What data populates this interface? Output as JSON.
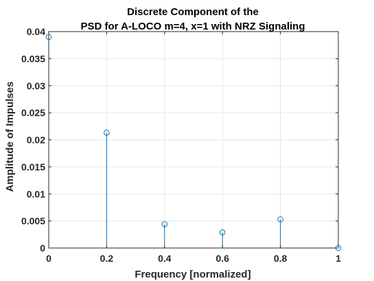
{
  "chart_data": {
    "type": "stem",
    "title": [
      "Discrete Component of the",
      "PSD for A-LOCO m=4, x=1 with NRZ Signaling"
    ],
    "xlabel": "Frequency [normalized]",
    "ylabel": "Amplitude of Impulses",
    "xlim": [
      0,
      1
    ],
    "ylim": [
      0,
      0.04
    ],
    "xticks": [
      "0",
      "0.2",
      "0.4",
      "0.6",
      "0.8",
      "1"
    ],
    "yticks": [
      "0",
      "0.005",
      "0.01",
      "0.015",
      "0.02",
      "0.025",
      "0.03",
      "0.035",
      "0.04"
    ],
    "grid": true,
    "series": [
      {
        "x": [
          0,
          0.2,
          0.4,
          0.6,
          0.8,
          1
        ],
        "y": [
          0.039,
          0.0213,
          0.0044,
          0.0029,
          0.0053,
          0
        ],
        "color": "#0072BD",
        "marker": "circle"
      }
    ]
  }
}
